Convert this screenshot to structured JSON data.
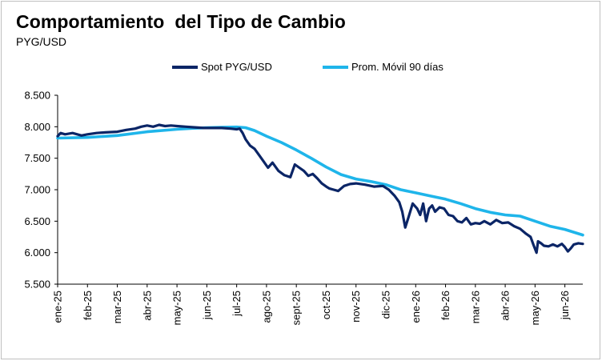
{
  "chart_data": {
    "type": "line",
    "title": "Comportamiento  del Tipo de Cambio",
    "subtitle": "PYG/USD",
    "xlabel": "",
    "ylabel": "",
    "ylim": [
      5500,
      8500
    ],
    "yticks": [
      5500,
      6000,
      6500,
      7000,
      7500,
      8000,
      8500
    ],
    "ytick_labels": [
      "5.500",
      "6.000",
      "6.500",
      "7.000",
      "7.500",
      "8.000",
      "8.500"
    ],
    "xticks": [
      "ene-25",
      "feb-25",
      "mar-25",
      "abr-25",
      "may-25",
      "jun-25",
      "jul-25",
      "ago-25",
      "sept-25",
      "oct-25",
      "nov-25",
      "dic-25",
      "ene-26",
      "feb-26",
      "mar-26",
      "abr-26",
      "may-26",
      "jun-26"
    ],
    "x_range_months": [
      0,
      17.6
    ],
    "legend_position": "top-center",
    "grid": false,
    "series": [
      {
        "name": "Spot PYG/USD",
        "color": "#0b2566",
        "x": [
          0,
          0.1,
          0.25,
          0.5,
          0.8,
          1.0,
          1.3,
          1.6,
          2.0,
          2.3,
          2.6,
          2.8,
          3.0,
          3.2,
          3.4,
          3.6,
          3.8,
          4.0,
          4.3,
          4.6,
          4.9,
          5.2,
          5.5,
          5.8,
          6.0,
          6.1,
          6.2,
          6.3,
          6.45,
          6.6,
          6.75,
          6.9,
          7.05,
          7.2,
          7.4,
          7.6,
          7.8,
          7.95,
          8.1,
          8.25,
          8.4,
          8.55,
          8.7,
          8.85,
          9.0,
          9.1,
          9.25,
          9.4,
          9.6,
          9.8,
          10.0,
          10.3,
          10.6,
          10.9,
          11.1,
          11.3,
          11.45,
          11.55,
          11.65,
          11.75,
          11.9,
          12.05,
          12.15,
          12.25,
          12.35,
          12.45,
          12.55,
          12.65,
          12.8,
          12.95,
          13.1,
          13.25,
          13.4,
          13.55,
          13.7,
          13.85,
          14.0,
          14.15,
          14.3,
          14.5,
          14.7,
          14.9,
          15.1,
          15.3,
          15.5,
          15.7,
          15.85,
          15.95,
          16.05,
          16.1,
          16.2,
          16.3,
          16.45,
          16.6,
          16.75,
          16.9,
          17.0,
          17.1,
          17.2,
          17.3,
          17.45,
          17.6
        ],
        "values": [
          7850,
          7900,
          7880,
          7900,
          7860,
          7880,
          7900,
          7910,
          7920,
          7950,
          7970,
          8000,
          8020,
          8000,
          8030,
          8010,
          8020,
          8010,
          8000,
          7990,
          7980,
          7980,
          7980,
          7970,
          7960,
          7970,
          7900,
          7800,
          7700,
          7650,
          7550,
          7450,
          7350,
          7430,
          7300,
          7230,
          7200,
          7400,
          7350,
          7300,
          7220,
          7250,
          7180,
          7100,
          7050,
          7020,
          7000,
          6980,
          7060,
          7090,
          7100,
          7080,
          7050,
          7060,
          7000,
          6900,
          6800,
          6650,
          6400,
          6550,
          6780,
          6700,
          6600,
          6780,
          6500,
          6700,
          6750,
          6650,
          6720,
          6700,
          6600,
          6580,
          6500,
          6480,
          6550,
          6450,
          6470,
          6460,
          6500,
          6450,
          6520,
          6470,
          6480,
          6420,
          6380,
          6300,
          6250,
          6120,
          6000,
          6180,
          6150,
          6110,
          6100,
          6130,
          6100,
          6140,
          6090,
          6020,
          6070,
          6130,
          6150,
          6140
        ]
      },
      {
        "name": "Prom. Móvil 90 días",
        "color": "#1fb5ea",
        "x": [
          0,
          1,
          2,
          3,
          4,
          4.5,
          5,
          5.5,
          6,
          6.3,
          6.6,
          7,
          7.5,
          8,
          8.5,
          9,
          9.5,
          10,
          10.5,
          11,
          11.5,
          12,
          12.5,
          13,
          13.5,
          14,
          14.5,
          15,
          15.5,
          16,
          16.5,
          17,
          17.6
        ],
        "values": [
          7820,
          7830,
          7860,
          7920,
          7960,
          7975,
          7985,
          7990,
          7995,
          7985,
          7940,
          7850,
          7750,
          7630,
          7500,
          7360,
          7240,
          7170,
          7130,
          7080,
          7000,
          6950,
          6900,
          6850,
          6780,
          6700,
          6640,
          6600,
          6580,
          6500,
          6420,
          6370,
          6280
        ]
      }
    ]
  },
  "legend": [
    {
      "label": "Spot PYG/USD",
      "color": "#0b2566"
    },
    {
      "label": "Prom. Móvil 90 días",
      "color": "#1fb5ea"
    }
  ]
}
